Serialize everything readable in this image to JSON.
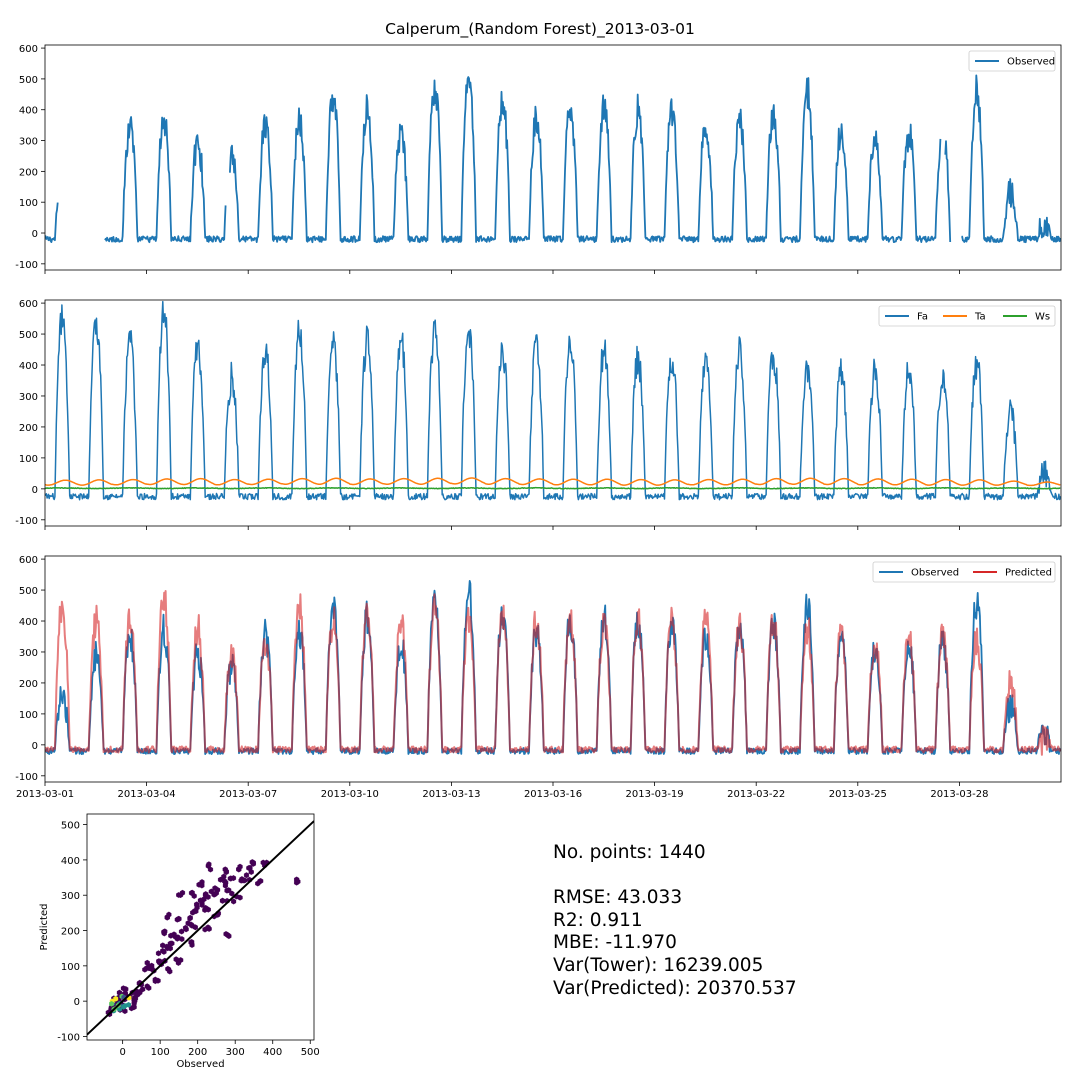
{
  "figure_title": "Calperum_(Random Forest)_2013-03-01",
  "stats": {
    "points": "No. points: 1440",
    "rmse": "RMSE: 43.033",
    "r2": "R2: 0.911",
    "mbe": "MBE: -11.970",
    "var_tower": "Var(Tower): 16239.005",
    "var_predicted": "Var(Predicted): 20370.537"
  },
  "colors": {
    "observed": "#1f77b4",
    "predicted": "#d62728",
    "fa": "#1f77b4",
    "ta": "#ff7f0e",
    "ws": "#2ca02c",
    "one_to_one": "#000000"
  },
  "chart_data": [
    {
      "type": "line",
      "title": "",
      "x_start": "2013-03-01",
      "x_end": "2013-03-31",
      "xlim_days": [
        0,
        30
      ],
      "ylim": [
        -120,
        610
      ],
      "yticks": [
        -100,
        0,
        100,
        200,
        300,
        400,
        500,
        600
      ],
      "xtick_labels_visible": false,
      "legend": "top-right",
      "legend_labels": [
        "Observed"
      ],
      "series": [
        {
          "name": "Observed",
          "color": "#1f77b4",
          "daily_peak": [
            150,
            280,
            350,
            370,
            300,
            260,
            350,
            370,
            440,
            410,
            330,
            470,
            500,
            430,
            370,
            400,
            410,
            400,
            390,
            350,
            370,
            390,
            460,
            340,
            310,
            320,
            340,
            460,
            130,
            30
          ],
          "night_baseline": -20,
          "gaps_days": [
            [
              0.38,
              1.75
            ],
            [
              5.35,
              5.45
            ],
            [
              26.45,
              26.58
            ],
            [
              26.75,
              27.05
            ]
          ]
        }
      ]
    },
    {
      "type": "line",
      "title": "",
      "x_start": "2013-03-01",
      "x_end": "2013-03-31",
      "xlim_days": [
        0,
        30
      ],
      "ylim": [
        -120,
        610
      ],
      "yticks": [
        -100,
        0,
        100,
        200,
        300,
        400,
        500,
        600
      ],
      "xtick_labels_visible": false,
      "legend": "top-right",
      "legend_labels": [
        "Fa",
        "Ta",
        "Ws"
      ],
      "series": [
        {
          "name": "Fa",
          "color": "#1f77b4",
          "daily_peak": [
            550,
            540,
            470,
            570,
            470,
            360,
            450,
            520,
            470,
            480,
            490,
            510,
            510,
            450,
            460,
            470,
            450,
            420,
            410,
            410,
            440,
            430,
            400,
            380,
            380,
            380,
            380,
            410,
            250,
            40
          ],
          "night_baseline": -25
        },
        {
          "name": "Ta",
          "color": "#ff7f0e",
          "daily_peak": [
            28,
            29,
            30,
            32,
            33,
            30,
            31,
            33,
            34,
            32,
            33,
            34,
            35,
            33,
            32,
            31,
            31,
            30,
            29,
            30,
            31,
            33,
            34,
            33,
            32,
            31,
            30,
            29,
            25,
            22
          ],
          "daily_min": [
            12,
            12,
            13,
            14,
            14,
            13,
            14,
            15,
            15,
            14,
            15,
            15,
            16,
            15,
            14,
            13,
            13,
            12,
            12,
            13,
            13,
            14,
            15,
            14,
            13,
            13,
            12,
            12,
            12,
            11
          ]
        },
        {
          "name": "Ws",
          "color": "#2ca02c",
          "mean": 2,
          "amplitude": 2
        }
      ]
    },
    {
      "type": "line",
      "title": "",
      "x_start": "2013-03-01",
      "x_end": "2013-03-31",
      "xlim_days": [
        0,
        30
      ],
      "ylim": [
        -120,
        610
      ],
      "yticks": [
        -100,
        0,
        100,
        200,
        300,
        400,
        500,
        600
      ],
      "xtick_labels": [
        "2013-03-01",
        "2013-03-04",
        "2013-03-07",
        "2013-03-10",
        "2013-03-13",
        "2013-03-16",
        "2013-03-19",
        "2013-03-22",
        "2013-03-25",
        "2013-03-28"
      ],
      "xtick_days": [
        0,
        3,
        6,
        9,
        12,
        15,
        18,
        21,
        24,
        27
      ],
      "legend": "top-right",
      "legend_labels": [
        "Observed",
        "Predicted"
      ],
      "series": [
        {
          "name": "Observed",
          "color": "#1f77b4",
          "daily_peak": [
            150,
            280,
            350,
            370,
            300,
            260,
            350,
            370,
            440,
            410,
            330,
            470,
            500,
            430,
            370,
            400,
            410,
            400,
            390,
            350,
            370,
            390,
            460,
            340,
            310,
            320,
            340,
            460,
            130,
            30
          ],
          "night_baseline": -20
        },
        {
          "name": "Predicted",
          "color": "#d62728",
          "alpha": 0.6,
          "daily_peak": [
            450,
            400,
            410,
            475,
            380,
            300,
            340,
            450,
            400,
            420,
            390,
            440,
            410,
            420,
            400,
            410,
            390,
            400,
            400,
            400,
            380,
            390,
            380,
            360,
            340,
            340,
            350,
            340,
            190,
            20
          ],
          "night_baseline": -15
        }
      ]
    },
    {
      "type": "scatter",
      "style": "hexbin",
      "title": "",
      "xlabel": "Observed",
      "ylabel": "Predicted",
      "xlim": [
        -95,
        510
      ],
      "ylim": [
        -110,
        530
      ],
      "xticks": [
        0,
        100,
        200,
        300,
        400,
        500
      ],
      "yticks": [
        -100,
        0,
        100,
        200,
        300,
        400,
        500
      ],
      "one_to_one_line": true,
      "points": [
        [
          -40,
          -30
        ],
        [
          -30,
          -20
        ],
        [
          -20,
          -10
        ],
        [
          -10,
          0
        ],
        [
          0,
          -5
        ],
        [
          10,
          10
        ],
        [
          20,
          0
        ],
        [
          -5,
          -20
        ],
        [
          30,
          20
        ],
        [
          40,
          30
        ],
        [
          50,
          50
        ],
        [
          60,
          80
        ],
        [
          70,
          100
        ],
        [
          80,
          90
        ],
        [
          90,
          110
        ],
        [
          100,
          140
        ],
        [
          110,
          120
        ],
        [
          120,
          150
        ],
        [
          130,
          160
        ],
        [
          140,
          180
        ],
        [
          150,
          170
        ],
        [
          160,
          200
        ],
        [
          170,
          230
        ],
        [
          180,
          220
        ],
        [
          190,
          250
        ],
        [
          200,
          270
        ],
        [
          210,
          290
        ],
        [
          220,
          300
        ],
        [
          230,
          260
        ],
        [
          240,
          310
        ],
        [
          250,
          300
        ],
        [
          260,
          330
        ],
        [
          270,
          350
        ],
        [
          280,
          370
        ],
        [
          290,
          310
        ],
        [
          300,
          360
        ],
        [
          310,
          380
        ],
        [
          320,
          340
        ],
        [
          330,
          350
        ],
        [
          340,
          370
        ],
        [
          350,
          390
        ],
        [
          360,
          330
        ],
        [
          380,
          390
        ],
        [
          460,
          340
        ],
        [
          100,
          190
        ],
        [
          120,
          240
        ],
        [
          140,
          230
        ],
        [
          160,
          300
        ],
        [
          180,
          310
        ],
        [
          200,
          330
        ],
        [
          230,
          380
        ],
        [
          280,
          180
        ],
        [
          250,
          240
        ],
        [
          220,
          210
        ],
        [
          190,
          160
        ],
        [
          150,
          120
        ],
        [
          120,
          80
        ],
        [
          90,
          60
        ],
        [
          60,
          40
        ],
        [
          40,
          10
        ],
        [
          20,
          -20
        ],
        [
          0,
          20
        ],
        [
          -20,
          10
        ],
        [
          5,
          30
        ],
        [
          300,
          290
        ],
        [
          270,
          290
        ]
      ],
      "dense_core": [
        [
          -30,
          30
        ],
        [
          -30,
          20
        ]
      ]
    }
  ]
}
